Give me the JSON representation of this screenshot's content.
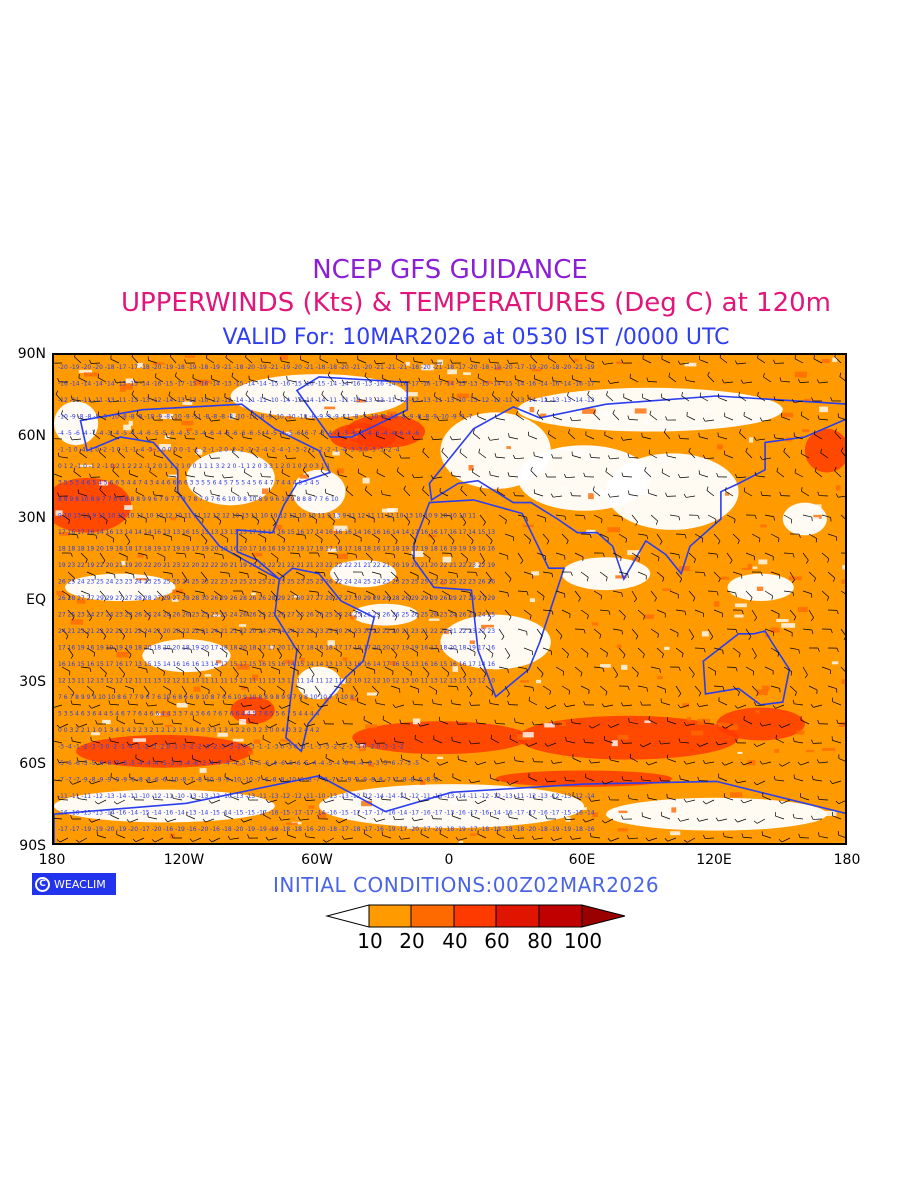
{
  "titles": {
    "line1": "NCEP GFS GUIDANCE",
    "line2": "UPPERWINDS (Kts) & TEMPERATURES (Deg C) at 120m",
    "line3": "VALID For: 10MAR2026 at 0530 IST /0000 UTC"
  },
  "axes": {
    "lat_labels": [
      "90N",
      "60N",
      "30N",
      "EQ",
      "30S",
      "60S",
      "90S"
    ],
    "lon_labels": [
      "180",
      "120W",
      "60W",
      "0",
      "60E",
      "120E",
      "180"
    ]
  },
  "logo": {
    "text": "WEACLIM",
    "icon": "weaclim-logo-icon"
  },
  "initial_conditions": "INITIAL  CONDITIONS:00Z02MAR2026",
  "legend": {
    "labels": [
      "10",
      "20",
      "40",
      "60",
      "80",
      "100"
    ],
    "colors": [
      "#ffffff",
      "#ff9a00",
      "#ff6a00",
      "#ff3a00",
      "#e01500",
      "#c00000",
      "#9a0000"
    ]
  },
  "colors": {
    "land_outline": "#2a3ef0",
    "wind_barbs": "#000000",
    "temperature_labels": "#2a3ef0"
  }
}
